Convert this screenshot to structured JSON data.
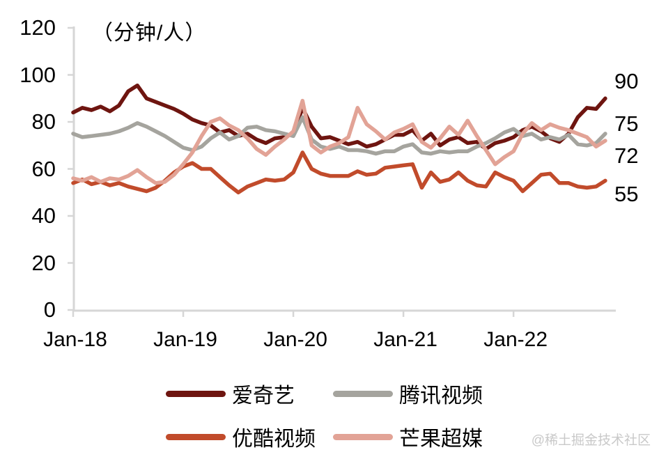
{
  "chart_data": {
    "type": "line",
    "title": "（分钟/人）",
    "unit_label": "（分钟/人）",
    "xlabel": "",
    "ylabel": "",
    "ylim": [
      0,
      120
    ],
    "y_ticks": [
      0,
      20,
      40,
      60,
      80,
      100,
      120
    ],
    "x_tick_labels": [
      "Jan-18",
      "Jan-19",
      "Jan-20",
      "Jan-21",
      "Jan-22"
    ],
    "x_tick_month_index": [
      0,
      12,
      24,
      36,
      48
    ],
    "x_unit": "month, Jan-2018 through Nov-2022",
    "grid": false,
    "legend_position": "bottom",
    "series": [
      {
        "id": "iqiyi",
        "name": "爱奇艺",
        "color": "#6e1510",
        "end_label": "90",
        "values": [
          84,
          86,
          85,
          86.5,
          84.5,
          87,
          93,
          95.5,
          90,
          88.5,
          87,
          85.5,
          83.5,
          81,
          79.5,
          78.5,
          75.5,
          76.5,
          74,
          75,
          72.5,
          71,
          73,
          73.5,
          75,
          86,
          78,
          73,
          73.5,
          72,
          70.5,
          71.5,
          69.5,
          70.5,
          72.5,
          74.5,
          74.5,
          76.5,
          72,
          75,
          70,
          72.5,
          73.5,
          71,
          71.5,
          68.5,
          71,
          72,
          73.5,
          76.5,
          78,
          76,
          73,
          71.5,
          75,
          82,
          86,
          85.5,
          90
        ]
      },
      {
        "id": "tencent-video",
        "name": "腾讯视频",
        "color": "#a5a49e",
        "end_label": "75",
        "values": [
          75,
          73.5,
          74,
          74.5,
          75,
          76,
          77.5,
          79.5,
          78,
          76,
          74,
          71.5,
          69,
          68,
          69.5,
          73,
          75.5,
          72.5,
          74,
          77.5,
          78,
          76.5,
          76,
          75,
          74,
          82,
          72.5,
          69.5,
          68.5,
          69.5,
          68,
          68,
          67.5,
          66.5,
          67.5,
          67.5,
          69.5,
          70.5,
          67,
          66.5,
          67.5,
          67,
          67.5,
          67.5,
          69.5,
          71,
          73,
          75.5,
          77,
          74,
          75,
          72.5,
          73.5,
          72.5,
          74.5,
          70.5,
          70,
          71,
          75
        ]
      },
      {
        "id": "youku-video",
        "name": "优酷视频",
        "color": "#c14b2b",
        "end_label": "55",
        "values": [
          54,
          55.5,
          53.5,
          54.5,
          53,
          54,
          52.5,
          51.5,
          50.5,
          52,
          55,
          58.5,
          61,
          62.5,
          60,
          60,
          56.5,
          53,
          50,
          52.5,
          54,
          55.5,
          55,
          55.5,
          58.5,
          67,
          60,
          58,
          57,
          57,
          57,
          59,
          57.5,
          58,
          60.5,
          61,
          61.5,
          62,
          52,
          58.5,
          54.5,
          55.5,
          58.5,
          55,
          53,
          52.5,
          58.5,
          56.5,
          55,
          50.5,
          54,
          57.5,
          58,
          54,
          54,
          52.5,
          52,
          52.5,
          55
        ]
      },
      {
        "id": "mango-tv",
        "name": "芒果超媒",
        "color": "#e2a396",
        "end_label": "72",
        "values": [
          56,
          55,
          56.5,
          54.5,
          56,
          55.5,
          57,
          59.5,
          56.5,
          54,
          54.5,
          57.5,
          62,
          67,
          74,
          80,
          81.5,
          78.5,
          76.5,
          73,
          68.5,
          66,
          69.5,
          72.5,
          76,
          89,
          70,
          67,
          69.5,
          71,
          73.5,
          86,
          79,
          76,
          72.5,
          75.5,
          77,
          79,
          71.5,
          69,
          73,
          78,
          74.5,
          80.5,
          74,
          68,
          62,
          65,
          67.5,
          75,
          79.5,
          76.5,
          79,
          77.5,
          76.5,
          75,
          73.5,
          69.5,
          72
        ]
      }
    ]
  },
  "watermark": "@稀土掘金技术社区",
  "axis_color": "#d6d6d6"
}
